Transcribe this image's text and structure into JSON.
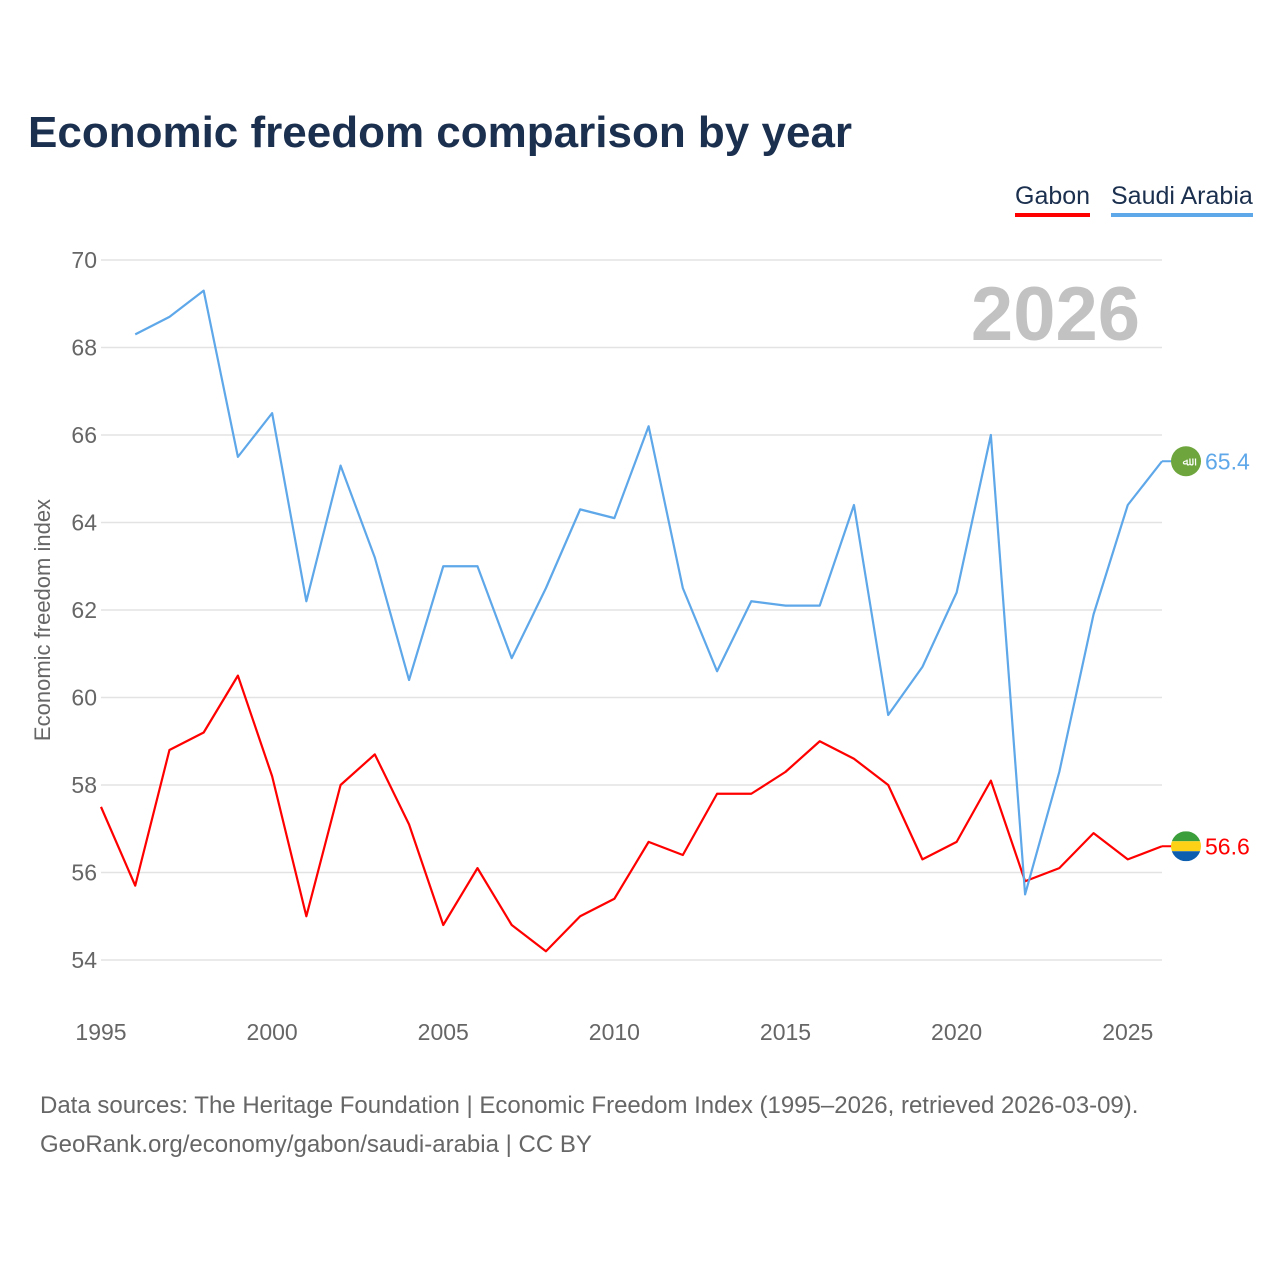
{
  "chart_data": {
    "type": "line",
    "title": "Economic freedom comparison by year",
    "xlabel": "",
    "ylabel": "Economic freedom index",
    "xlim": [
      1995,
      2026
    ],
    "ylim": [
      54,
      70
    ],
    "yticks": [
      54,
      56,
      58,
      60,
      62,
      64,
      66,
      68,
      70
    ],
    "xticks": [
      1995,
      2000,
      2005,
      2010,
      2015,
      2020,
      2025
    ],
    "grid": true,
    "legend_position": "top-right",
    "year_watermark": "2026",
    "series": [
      {
        "name": "Gabon",
        "color": "#ff0000",
        "end_label": "56.6",
        "flag_icon": "gabon-flag",
        "x": [
          1995,
          1996,
          1997,
          1998,
          1999,
          2000,
          2001,
          2002,
          2003,
          2004,
          2005,
          2006,
          2007,
          2008,
          2009,
          2010,
          2011,
          2012,
          2013,
          2014,
          2015,
          2016,
          2017,
          2018,
          2019,
          2020,
          2021,
          2022,
          2023,
          2024,
          2025,
          2026
        ],
        "values": [
          57.5,
          55.7,
          58.8,
          59.2,
          60.5,
          58.2,
          55.0,
          58.0,
          58.7,
          57.1,
          54.8,
          56.1,
          54.8,
          54.2,
          55.0,
          55.4,
          56.7,
          56.4,
          57.8,
          57.8,
          58.3,
          59.0,
          58.6,
          58.0,
          56.3,
          56.7,
          58.1,
          55.8,
          56.1,
          56.9,
          56.3,
          56.6
        ]
      },
      {
        "name": "Saudi Arabia",
        "color": "#5ea7e9",
        "end_label": "65.4",
        "flag_icon": "saudi-arabia-flag",
        "x": [
          1996,
          1997,
          1998,
          1999,
          2000,
          2001,
          2002,
          2003,
          2004,
          2005,
          2006,
          2007,
          2008,
          2009,
          2010,
          2011,
          2012,
          2013,
          2014,
          2015,
          2016,
          2017,
          2018,
          2019,
          2020,
          2021,
          2022,
          2023,
          2024,
          2025,
          2026
        ],
        "values": [
          68.3,
          68.7,
          69.3,
          65.5,
          66.5,
          62.2,
          65.3,
          63.2,
          60.4,
          63.0,
          63.0,
          60.9,
          62.5,
          64.3,
          64.1,
          66.2,
          62.5,
          60.6,
          62.2,
          62.1,
          62.1,
          64.4,
          59.6,
          60.7,
          62.4,
          66.0,
          55.5,
          58.3,
          61.9,
          64.4,
          65.4
        ]
      }
    ]
  },
  "footer": {
    "line1": "Data sources: The Heritage Foundation | Economic Freedom Index (1995–2026, retrieved 2026-03-09).",
    "line2": "GeoRank.org/economy/gabon/saudi-arabia | CC BY"
  }
}
